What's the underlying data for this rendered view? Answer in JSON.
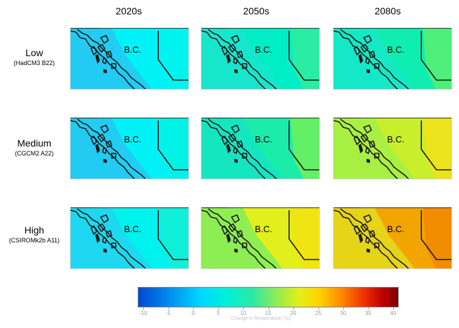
{
  "columns": [
    "2020s",
    "2050s",
    "2080s"
  ],
  "rows": [
    {
      "label": "Low",
      "sublabel": "(HadCM3 B22)"
    },
    {
      "label": "Medium",
      "sublabel": "(CGCM2 A22)"
    },
    {
      "label": "High",
      "sublabel": "(CSIROMk2b A11)"
    }
  ],
  "map_label": "B.C.",
  "panels": [
    [
      {
        "base": "#00f2f6",
        "west": "#25c9f2",
        "east": "#00f3ee"
      },
      {
        "base": "#00eec6",
        "west": "#18e6cc",
        "east": "#2fec9e"
      },
      {
        "base": "#10edb0",
        "west": "#16e7c8",
        "east": "#55ee76"
      }
    ],
    [
      {
        "base": "#00f2f6",
        "west": "#25c9f2",
        "east": "#00f2e6"
      },
      {
        "base": "#1cecaa",
        "west": "#14e6c4",
        "east": "#6cef5e"
      },
      {
        "base": "#c8ee2c",
        "west": "#a6ef46",
        "east": "#eee11a"
      }
    ],
    [
      {
        "base": "#00f2ee",
        "west": "#20d6f0",
        "east": "#12eed4"
      },
      {
        "base": "#e2ef1c",
        "west": "#86ee58",
        "east": "#f2e212"
      },
      {
        "base": "#f2a500",
        "west": "#e6d81a",
        "east": "#f28a00"
      }
    ]
  ],
  "legend": {
    "ticks": [
      "-10",
      "-5",
      "0",
      "5",
      "10",
      "15",
      "20",
      "25",
      "30",
      "35",
      "40"
    ],
    "caption": "Change in Temperature (°C)"
  }
}
